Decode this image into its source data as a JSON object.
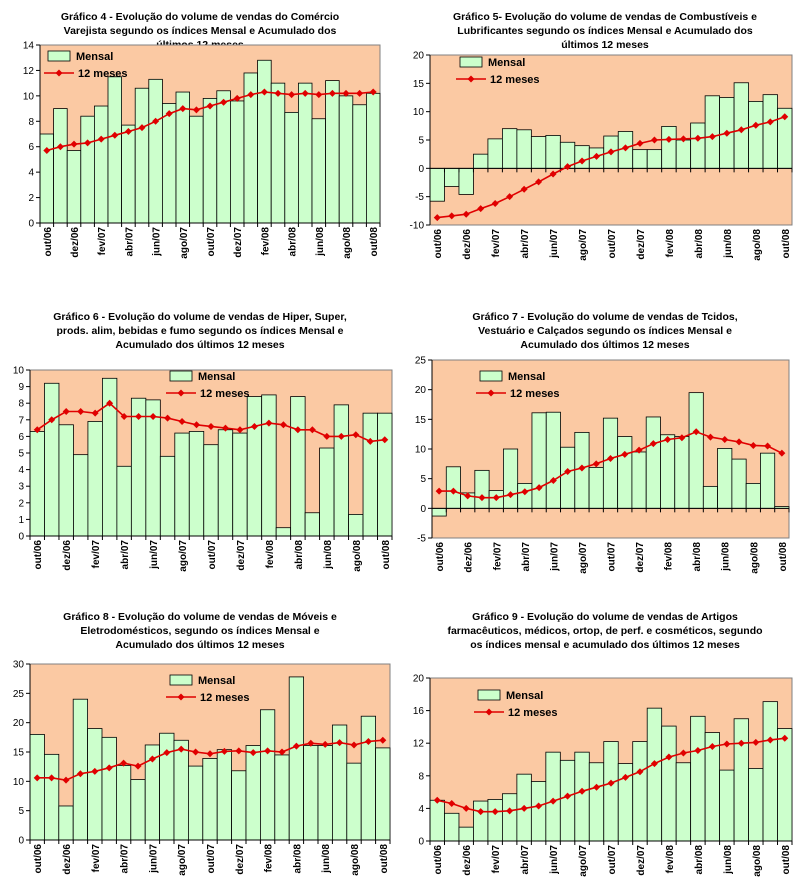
{
  "chart_data": [
    {
      "type": "bar",
      "title": "Gráfico 4 - Evolução do volume de vendas do Comércio Varejista segundo os índices Mensal e Acumulado dos últimos 12 meses",
      "categories": [
        "out/06",
        "nov/06",
        "dez/06",
        "jan/07",
        "fev/07",
        "mar/07",
        "abr/07",
        "mai/07",
        "jun/07",
        "jul/07",
        "ago/07",
        "set/07",
        "out/07",
        "nov/07",
        "dez/07",
        "jan/08",
        "fev/08",
        "mar/08",
        "abr/08",
        "mai/08",
        "jun/08",
        "jul/08",
        "ago/08",
        "set/08",
        "out/08"
      ],
      "tick_labels": [
        "out/06",
        "dez/06",
        "fev/07",
        "abr/07",
        "jun/07",
        "ago/07",
        "out/07",
        "dez/07",
        "fev/08",
        "abr/08",
        "jun/08",
        "ago/08",
        "out/08"
      ],
      "yticks": [
        "0",
        "2",
        "4",
        "6",
        "8",
        "10",
        "12",
        "14"
      ],
      "ylim": [
        0,
        14
      ],
      "legend_placement": "top-left",
      "series": [
        {
          "name": "Mensal",
          "kind": "bar",
          "values": [
            7.0,
            9.0,
            5.7,
            8.4,
            9.2,
            11.5,
            7.7,
            10.6,
            11.3,
            9.4,
            10.3,
            8.4,
            9.8,
            10.4,
            9.6,
            11.8,
            12.8,
            11.0,
            8.7,
            11.0,
            8.2,
            11.2,
            10.0,
            9.3,
            10.2
          ]
        },
        {
          "name": "12 meses",
          "kind": "line",
          "values": [
            5.7,
            6.0,
            6.2,
            6.3,
            6.6,
            6.9,
            7.2,
            7.5,
            8.0,
            8.6,
            9.0,
            8.9,
            9.2,
            9.5,
            9.8,
            10.1,
            10.3,
            10.2,
            10.1,
            10.2,
            10.1,
            10.2,
            10.2,
            10.2,
            10.3
          ]
        }
      ],
      "colors": {
        "plot_bg": "#fbc9a3",
        "bar": "#ccffcc",
        "line": "#e00000"
      }
    },
    {
      "type": "bar",
      "title": "Gráfico 5- Evolução do volume de vendas de Combustíveis e Lubrificantes segundo os índices Mensal e Acumulado dos últimos 12 meses",
      "categories": [
        "out/06",
        "nov/06",
        "dez/06",
        "jan/07",
        "fev/07",
        "mar/07",
        "abr/07",
        "mai/07",
        "jun/07",
        "jul/07",
        "ago/07",
        "set/07",
        "out/07",
        "nov/07",
        "dez/07",
        "jan/08",
        "fev/08",
        "mar/08",
        "abr/08",
        "mai/08",
        "jun/08",
        "jul/08",
        "ago/08",
        "set/08",
        "out/08"
      ],
      "tick_labels": [
        "out/06",
        "dez/06",
        "fev/07",
        "abr/07",
        "jun/07",
        "ago/07",
        "out/07",
        "dez/07",
        "fev/08",
        "abr/08",
        "jun/08",
        "ago/08",
        "out/08"
      ],
      "yticks": [
        "-10",
        "-5",
        "0",
        "5",
        "10",
        "15",
        "20"
      ],
      "ylim": [
        -10,
        20
      ],
      "legend_placement": "top-left",
      "series": [
        {
          "name": "Mensal",
          "kind": "bar",
          "values": [
            -5.8,
            -3.2,
            -4.6,
            2.5,
            5.2,
            7.0,
            6.8,
            5.6,
            5.8,
            4.6,
            4.0,
            3.6,
            5.7,
            6.5,
            3.3,
            3.3,
            7.4,
            5.0,
            8.0,
            12.8,
            12.5,
            15.1,
            11.8,
            13.0,
            10.6
          ]
        },
        {
          "name": "12 meses",
          "kind": "line",
          "values": [
            -8.7,
            -8.4,
            -8.1,
            -7.1,
            -6.2,
            -5.0,
            -3.7,
            -2.4,
            -1.0,
            0.3,
            1.3,
            2.1,
            2.9,
            3.6,
            4.4,
            5.0,
            5.1,
            5.2,
            5.3,
            5.6,
            6.2,
            6.8,
            7.6,
            8.2,
            9.1
          ]
        }
      ],
      "colors": {
        "plot_bg": "#fbc9a3",
        "bar": "#ccffcc",
        "line": "#e00000"
      }
    },
    {
      "type": "bar",
      "title": "Gráfico 6 - Evolução do volume de vendas de Hiper, Super, prods. alim, bebidas e fumo segundo os índices Mensal e Acumulado dos últimos 12 meses",
      "categories": [
        "out/06",
        "nov/06",
        "dez/06",
        "jan/07",
        "fev/07",
        "mar/07",
        "abr/07",
        "mai/07",
        "jun/07",
        "jul/07",
        "ago/07",
        "set/07",
        "out/07",
        "nov/07",
        "dez/07",
        "jan/08",
        "fev/08",
        "mar/08",
        "abr/08",
        "mai/08",
        "jun/08",
        "jul/08",
        "ago/08",
        "set/08",
        "out/08"
      ],
      "tick_labels": [
        "out/06",
        "dez/06",
        "fev/07",
        "abr/07",
        "jun/07",
        "ago/07",
        "out/07",
        "dez/07",
        "fev/08",
        "abr/08",
        "jun/08",
        "ago/08",
        "out/08"
      ],
      "yticks": [
        "0",
        "1",
        "2",
        "3",
        "4",
        "5",
        "6",
        "7",
        "8",
        "9",
        "10"
      ],
      "ylim": [
        0,
        10
      ],
      "legend_placement": "top-right",
      "series": [
        {
          "name": "Mensal",
          "kind": "bar",
          "values": [
            6.3,
            9.2,
            6.7,
            4.9,
            6.9,
            9.5,
            4.2,
            8.3,
            8.2,
            4.8,
            6.2,
            6.3,
            5.5,
            6.4,
            6.2,
            8.4,
            8.5,
            0.5,
            8.4,
            1.4,
            5.3,
            7.9,
            1.3,
            7.4,
            7.4
          ]
        },
        {
          "name": "12 meses",
          "kind": "line",
          "values": [
            6.4,
            7.0,
            7.5,
            7.5,
            7.4,
            8.0,
            7.2,
            7.2,
            7.2,
            7.1,
            6.9,
            6.7,
            6.6,
            6.5,
            6.4,
            6.6,
            6.8,
            6.7,
            6.4,
            6.4,
            6.0,
            6.0,
            6.1,
            5.7,
            5.8
          ]
        }
      ],
      "colors": {
        "plot_bg": "#fbc9a3",
        "bar": "#ccffcc",
        "line": "#e00000"
      }
    },
    {
      "type": "bar",
      "title": "Gráfico 7 - Evolução do volume de vendas de Tcidos, Vestuário e Calçados segundo os índices Mensal e Acumulado dos últimos 12 meses",
      "categories": [
        "out/06",
        "nov/06",
        "dez/06",
        "jan/07",
        "fev/07",
        "mar/07",
        "abr/07",
        "mai/07",
        "jun/07",
        "jul/07",
        "ago/07",
        "set/07",
        "out/07",
        "nov/07",
        "dez/07",
        "jan/08",
        "fev/08",
        "mar/08",
        "abr/08",
        "mai/08",
        "jun/08",
        "jul/08",
        "ago/08",
        "set/08",
        "out/08"
      ],
      "tick_labels": [
        "out/06",
        "dez/06",
        "fev/07",
        "abr/07",
        "jun/07",
        "ago/07",
        "out/07",
        "dez/07",
        "fev/08",
        "abr/08",
        "jun/08",
        "ago/08",
        "out/08"
      ],
      "yticks": [
        "-5",
        "0",
        "5",
        "10",
        "15",
        "20",
        "25"
      ],
      "ylim": [
        -5,
        25
      ],
      "legend_placement": "top-center",
      "series": [
        {
          "name": "Mensal",
          "kind": "bar",
          "values": [
            -1.3,
            7.0,
            2.6,
            6.4,
            3.0,
            10.0,
            4.2,
            16.1,
            16.2,
            10.3,
            12.8,
            6.9,
            15.2,
            12.1,
            9.5,
            15.4,
            12.4,
            12.1,
            19.5,
            3.7,
            10.1,
            8.3,
            4.2,
            9.3,
            0.3
          ]
        },
        {
          "name": "12 meses",
          "kind": "line",
          "values": [
            2.9,
            2.9,
            2.1,
            1.8,
            1.8,
            2.3,
            2.8,
            3.5,
            4.7,
            6.2,
            6.8,
            7.5,
            8.4,
            9.1,
            9.8,
            10.9,
            11.6,
            11.9,
            12.9,
            12.0,
            11.6,
            11.2,
            10.6,
            10.5,
            9.3
          ]
        }
      ],
      "colors": {
        "plot_bg": "#fbc9a3",
        "bar": "#ccffcc",
        "line": "#e00000"
      }
    },
    {
      "type": "bar",
      "title": "Gráfico 8 - Evolução do volume de vendas de Móveis e Eletrodomésticos, segundo os índices Mensal e Acumulado dos últimos 12 meses",
      "categories": [
        "out/06",
        "nov/06",
        "dez/06",
        "jan/07",
        "fev/07",
        "mar/07",
        "abr/07",
        "mai/07",
        "jun/07",
        "jul/07",
        "ago/07",
        "set/07",
        "out/07",
        "nov/07",
        "dez/07",
        "jan/08",
        "fev/08",
        "mar/08",
        "abr/08",
        "mai/08",
        "jun/08",
        "jul/08",
        "ago/08",
        "set/08",
        "out/08"
      ],
      "tick_labels": [
        "out/06",
        "dez/06",
        "fev/07",
        "abr/07",
        "jun/07",
        "ago/07",
        "out/07",
        "dez/07",
        "fev/08",
        "abr/08",
        "jun/08",
        "ago/08",
        "out/08"
      ],
      "yticks": [
        "0",
        "5",
        "10",
        "15",
        "20",
        "25",
        "30"
      ],
      "ylim": [
        0,
        30
      ],
      "legend_placement": "top-center",
      "series": [
        {
          "name": "Mensal",
          "kind": "bar",
          "values": [
            18.0,
            14.6,
            5.8,
            24.0,
            19.0,
            17.5,
            12.7,
            10.3,
            16.2,
            18.2,
            17.0,
            12.6,
            13.9,
            15.4,
            11.8,
            16.1,
            22.2,
            14.5,
            27.8,
            16.1,
            16.1,
            19.6,
            13.1,
            21.1,
            15.7
          ]
        },
        {
          "name": "12 meses",
          "kind": "line",
          "values": [
            10.6,
            10.6,
            10.2,
            11.3,
            11.7,
            12.3,
            13.1,
            12.6,
            13.8,
            14.9,
            15.5,
            15.0,
            14.7,
            15.1,
            15.2,
            14.9,
            15.2,
            15.0,
            16.0,
            16.5,
            16.3,
            16.6,
            16.2,
            16.8,
            17.0
          ]
        }
      ],
      "colors": {
        "plot_bg": "#fbc9a3",
        "bar": "#ccffcc",
        "line": "#e00000"
      }
    },
    {
      "type": "bar",
      "title": "Gráfico 9 - Evolução do volume de vendas de Artigos farmacêuticos, médicos, ortop, de perf. e cosméticos, segundo os índices mensal e acumulado dos últimos 12 meses",
      "categories": [
        "out/06",
        "nov/06",
        "dez/06",
        "jan/07",
        "fev/07",
        "mar/07",
        "abr/07",
        "mai/07",
        "jun/07",
        "jul/07",
        "ago/07",
        "set/07",
        "out/07",
        "nov/07",
        "dez/07",
        "jan/08",
        "fev/08",
        "mar/08",
        "abr/08",
        "mai/08",
        "jun/08",
        "jul/08",
        "ago/08",
        "set/08",
        "out/08"
      ],
      "tick_labels": [
        "out/06",
        "dez/06",
        "fev/07",
        "abr/07",
        "jun/07",
        "ago/07",
        "out/07",
        "dez/07",
        "fev/08",
        "abr/08",
        "jun/08",
        "ago/08",
        "out/08"
      ],
      "yticks": [
        "0",
        "4",
        "8",
        "12",
        "16",
        "20"
      ],
      "ylim": [
        0,
        20
      ],
      "legend_placement": "top-left",
      "series": [
        {
          "name": "Mensal",
          "kind": "bar",
          "values": [
            5.0,
            3.4,
            1.7,
            4.9,
            5.1,
            5.8,
            8.2,
            7.3,
            10.9,
            9.9,
            10.9,
            9.6,
            12.2,
            9.5,
            12.2,
            16.3,
            14.1,
            9.6,
            15.3,
            13.3,
            8.7,
            15.0,
            8.9,
            17.1,
            13.8
          ]
        },
        {
          "name": "12 meses",
          "kind": "line",
          "values": [
            5.0,
            4.6,
            4.0,
            3.6,
            3.6,
            3.7,
            4.0,
            4.3,
            4.9,
            5.5,
            6.1,
            6.6,
            7.1,
            7.8,
            8.5,
            9.5,
            10.3,
            10.8,
            11.1,
            11.6,
            11.9,
            12.0,
            12.1,
            12.4,
            12.6
          ]
        }
      ],
      "colors": {
        "plot_bg": "#fbc9a3",
        "bar": "#ccffcc",
        "line": "#e00000"
      }
    }
  ]
}
